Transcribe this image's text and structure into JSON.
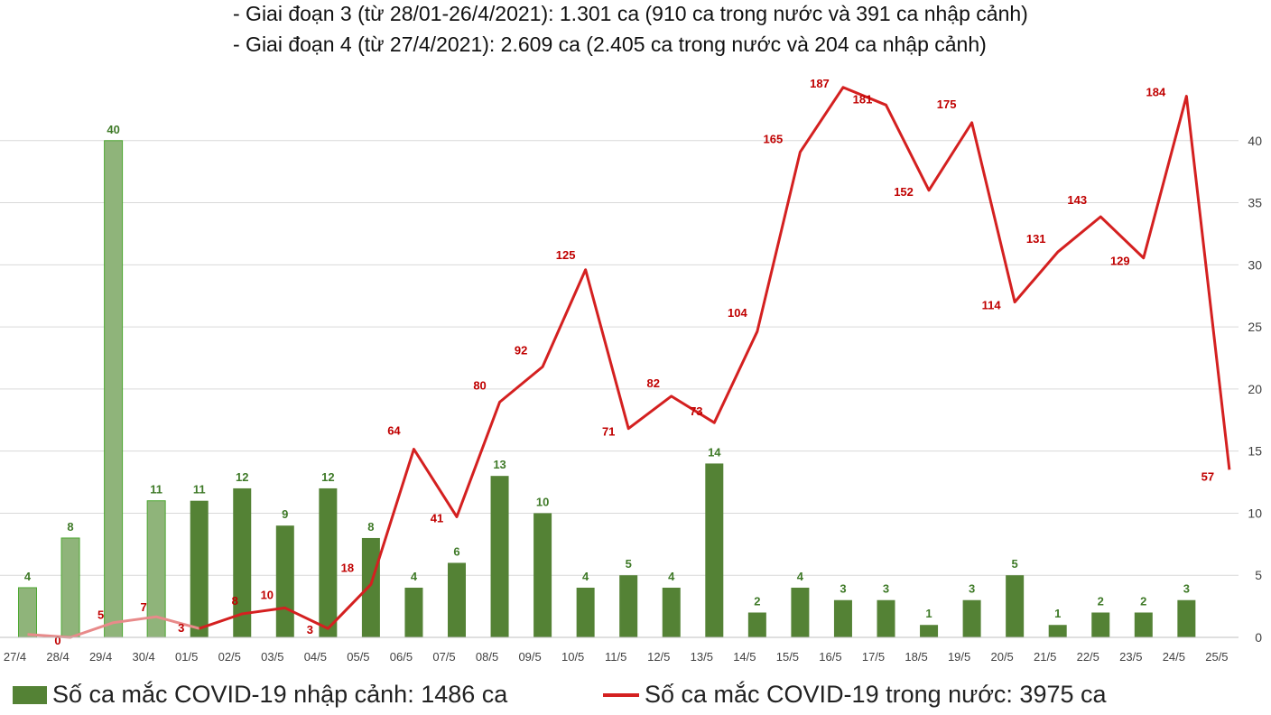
{
  "header": {
    "line1": "- Giai đoạn 3 (từ 28/01-26/4/2021): 1.301 ca (910 ca trong nước và 391 ca nhập cảnh)",
    "line2": "- Giai đoạn 4 (từ 27/4/2021): 2.609 ca (2.405 ca trong nước và 204 ca nhập cảnh)"
  },
  "legend": {
    "import_label": "Số ca mắc COVID-19 nhập cảnh: 1486 ca",
    "domestic_label": "Số ca mắc COVID-19 trong nước: 3975 ca"
  },
  "colors": {
    "bar": "#548235",
    "bar_faded": "#8fb47a",
    "line": "#d42020",
    "line_faded": "#e88a8a",
    "bar_label": "#3f7a28",
    "line_label": "#c00000",
    "grid": "#d9d9d9",
    "axis_text": "#404040"
  },
  "chart_data": {
    "type": "bar+line",
    "categories": [
      "27/4",
      "28/4",
      "29/4",
      "30/4",
      "01/5",
      "02/5",
      "03/5",
      "04/5",
      "05/5",
      "06/5",
      "07/5",
      "08/5",
      "09/5",
      "10/5",
      "11/5",
      "12/5",
      "13/5",
      "14/5",
      "15/5",
      "16/5",
      "17/5",
      "18/5",
      "19/5",
      "20/5",
      "21/5",
      "22/5",
      "23/5",
      "24/5",
      "25/5"
    ],
    "series": [
      {
        "name": "Số ca mắc COVID-19 nhập cảnh",
        "type": "bar",
        "axis": "right",
        "values": [
          4,
          8,
          40,
          11,
          11,
          12,
          9,
          12,
          8,
          4,
          6,
          13,
          10,
          4,
          5,
          4,
          14,
          2,
          4,
          3,
          3,
          1,
          3,
          5,
          1,
          2,
          2,
          3,
          null
        ],
        "value_labels": [
          "4",
          "8",
          "40",
          "11",
          "11",
          "12",
          "9",
          "12",
          "8",
          "4",
          "6",
          "13",
          "10",
          "4",
          "5",
          "4",
          "14",
          "2",
          "4",
          "3",
          "3",
          "1",
          "3",
          "5",
          "1",
          "2",
          "2",
          "3",
          ""
        ]
      },
      {
        "name": "Số ca mắc COVID-19 trong nước",
        "type": "line",
        "axis": "left",
        "values": [
          1,
          0,
          5,
          7,
          3,
          8,
          10,
          3,
          18,
          64,
          41,
          80,
          92,
          125,
          71,
          82,
          73,
          104,
          165,
          187,
          181,
          152,
          175,
          114,
          131,
          143,
          129,
          184,
          57
        ],
        "value_labels": [
          "",
          "0",
          "5",
          "7",
          "3",
          "8",
          "10",
          "3",
          "18",
          "64",
          "41",
          "80",
          "92",
          "125",
          "71",
          "82",
          "73",
          "104",
          "165",
          "187",
          "181",
          "152",
          "175",
          "114",
          "131",
          "143",
          "129",
          "184",
          "57"
        ]
      }
    ],
    "right_axis": {
      "ticks": [
        "0",
        "5",
        "10",
        "15",
        "20",
        "25",
        "30",
        "35",
        "40"
      ],
      "min": 0,
      "max": 45
    },
    "left_axis": {
      "min": 0,
      "max": 200
    },
    "faded_through_index": 3,
    "grid": true,
    "legend_position": "bottom"
  }
}
